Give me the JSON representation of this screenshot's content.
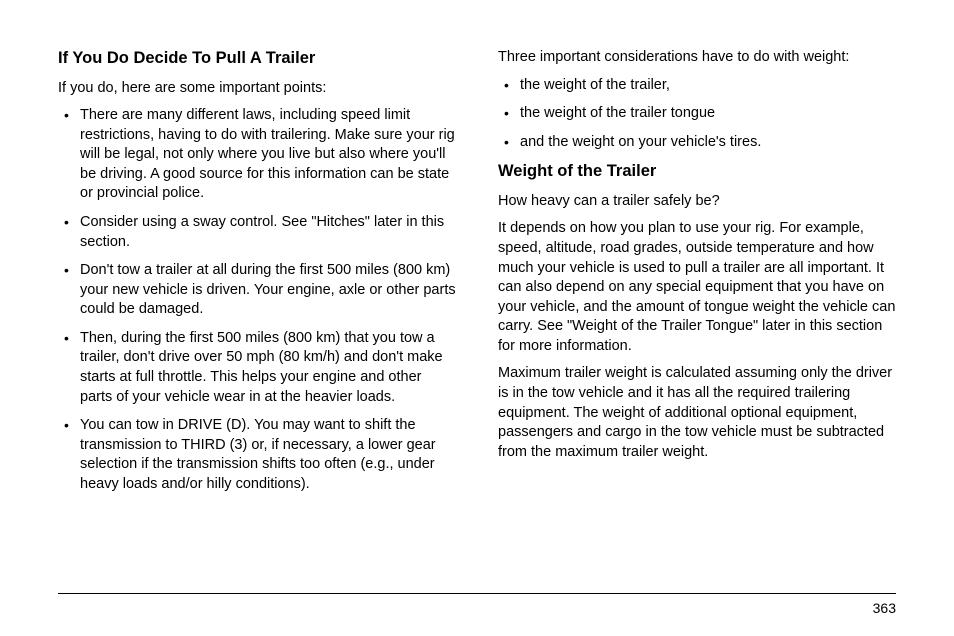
{
  "left": {
    "heading": "If You Do Decide To Pull A Trailer",
    "intro": "If you do, here are some important points:",
    "bullets": [
      "There are many different laws, including speed limit restrictions, having to do with trailering. Make sure your rig will be legal, not only where you live but also where you'll be driving. A good source for this information can be state or provincial police.",
      "Consider using a sway control. See \"Hitches\" later in this section.",
      "Don't tow a trailer at all during the first 500 miles (800 km) your new vehicle is driven. Your engine, axle or other parts could be damaged.",
      "Then, during the first 500 miles (800 km) that you tow a trailer, don't drive over 50 mph (80 km/h) and don't make starts at full throttle. This helps your engine and other parts of your vehicle wear in at the heavier loads.",
      "You can tow in DRIVE (D). You may want to shift the transmission to THIRD (3) or, if necessary, a lower gear selection if the transmission shifts too often (e.g., under heavy loads and/or hilly conditions)."
    ]
  },
  "right": {
    "intro": "Three important considerations have to do with weight:",
    "bullets": [
      "the weight of the trailer,",
      "the weight of the trailer tongue",
      "and the weight on your vehicle's tires."
    ],
    "heading": "Weight of the Trailer",
    "p1": "How heavy can a trailer safely be?",
    "p2": "It depends on how you plan to use your rig. For example, speed, altitude, road grades, outside temperature and how much your vehicle is used to pull a trailer are all important. It can also depend on any special equipment that you have on your vehicle, and the amount of tongue weight the vehicle can carry. See \"Weight of the Trailer Tongue\" later in this section for more information.",
    "p3": "Maximum trailer weight is calculated assuming only the driver is in the tow vehicle and it has all the required trailering equipment. The weight of additional optional equipment, passengers and cargo in the tow vehicle must be subtracted from the maximum trailer weight."
  },
  "page_number": "363"
}
